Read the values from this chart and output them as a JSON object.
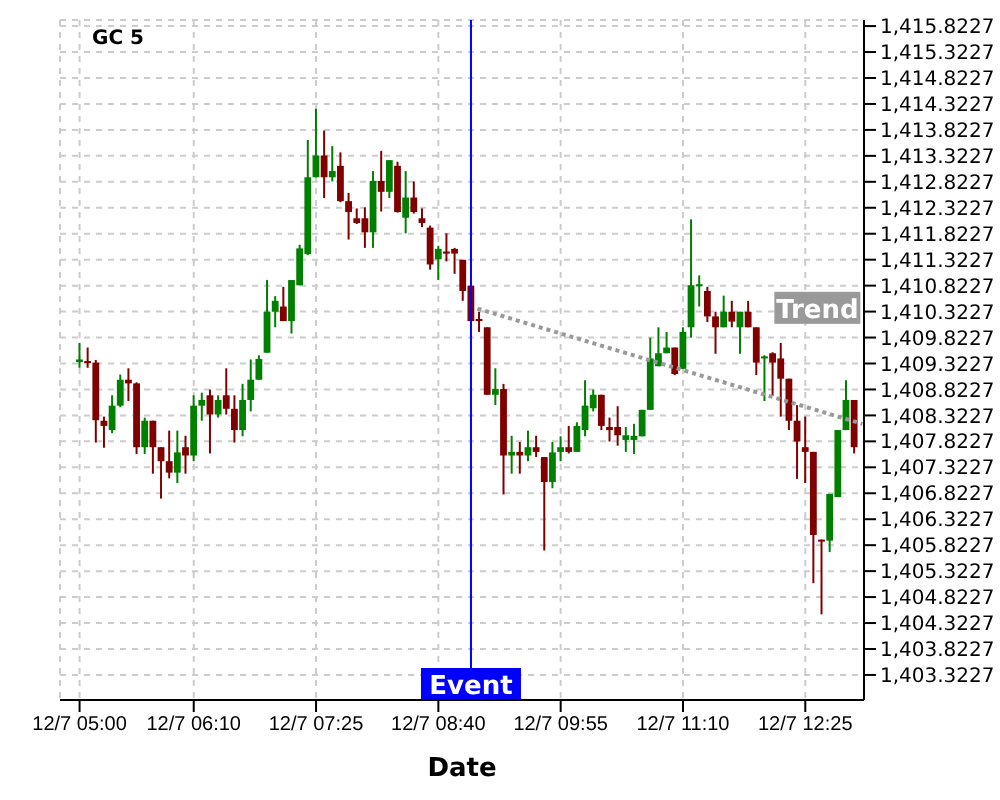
{
  "chart_data": {
    "type": "candlestick",
    "title": "GC 5",
    "xlabel": "Date",
    "x": [
      "--12-07T05:00",
      "--12-07T05:05",
      "--12-07T05:10",
      "--12-07T05:15",
      "--12-07T05:20",
      "--12-07T05:25",
      "--12-07T05:30",
      "--12-07T05:35",
      "--12-07T05:40",
      "--12-07T05:45",
      "--12-07T05:50",
      "--12-07T05:55",
      "--12-07T06:00",
      "--12-07T06:05",
      "--12-07T06:10",
      "--12-07T06:15",
      "--12-07T06:20",
      "--12-07T06:25",
      "--12-07T06:30",
      "--12-07T06:35",
      "--12-07T06:40",
      "--12-07T06:45",
      "--12-07T06:50",
      "--12-07T06:55",
      "--12-07T07:00",
      "--12-07T07:05",
      "--12-07T07:10",
      "--12-07T07:15",
      "--12-07T07:20",
      "--12-07T07:25",
      "--12-07T07:30",
      "--12-07T07:35",
      "--12-07T07:40",
      "--12-07T07:45",
      "--12-07T07:50",
      "--12-07T07:55",
      "--12-07T08:00",
      "--12-07T08:05",
      "--12-07T08:10",
      "--12-07T08:15",
      "--12-07T08:20",
      "--12-07T08:25",
      "--12-07T08:30",
      "--12-07T08:35",
      "--12-07T08:40",
      "--12-07T08:45",
      "--12-07T08:50",
      "--12-07T08:55",
      "--12-07T09:00",
      "--12-07T09:05",
      "--12-07T09:10",
      "--12-07T09:15",
      "--12-07T09:20",
      "--12-07T09:25",
      "--12-07T09:30",
      "--12-07T09:35",
      "--12-07T09:40",
      "--12-07T09:45",
      "--12-07T09:50",
      "--12-07T09:55",
      "--12-07T10:00",
      "--12-07T10:05",
      "--12-07T10:10",
      "--12-07T10:15",
      "--12-07T10:20",
      "--12-07T10:25",
      "--12-07T10:30",
      "--12-07T10:35",
      "--12-07T10:40",
      "--12-07T10:45",
      "--12-07T10:50",
      "--12-07T10:55",
      "--12-07T11:00",
      "--12-07T11:05",
      "--12-07T11:10",
      "--12-07T11:15",
      "--12-07T11:20",
      "--12-07T11:25",
      "--12-07T11:30",
      "--12-07T11:35",
      "--12-07T11:40",
      "--12-07T11:45",
      "--12-07T11:50",
      "--12-07T11:55",
      "--12-07T12:00",
      "--12-07T12:05",
      "--12-07T12:10",
      "--12-07T12:15",
      "--12-07T12:20",
      "--12-07T12:25",
      "--12-07T12:30",
      "--12-07T12:35",
      "--12-07T12:40",
      "--12-07T12:45",
      "--12-07T12:50",
      "--12-07T12:55"
    ],
    "ohlc": [
      [
        1409.35,
        1409.72,
        1409.24,
        1409.4
      ],
      [
        1409.37,
        1409.63,
        1409.24,
        1409.34
      ],
      [
        1409.34,
        1409.39,
        1407.8,
        1408.23
      ],
      [
        1408.22,
        1408.3,
        1407.7,
        1408.12
      ],
      [
        1408.04,
        1408.71,
        1407.98,
        1408.51
      ],
      [
        1408.51,
        1409.11,
        1408.48,
        1409.01
      ],
      [
        1409.01,
        1409.23,
        1408.6,
        1408.94
      ],
      [
        1408.94,
        1408.96,
        1407.58,
        1407.71
      ],
      [
        1407.71,
        1408.28,
        1407.58,
        1408.22
      ],
      [
        1408.22,
        1408.22,
        1407.2,
        1407.71
      ],
      [
        1407.71,
        1407.71,
        1406.72,
        1407.44
      ],
      [
        1407.44,
        1408.03,
        1407.11,
        1407.22
      ],
      [
        1407.22,
        1408.03,
        1407.02,
        1407.61
      ],
      [
        1407.71,
        1407.93,
        1407.2,
        1407.55
      ],
      [
        1407.55,
        1408.71,
        1407.44,
        1408.51
      ],
      [
        1408.51,
        1408.76,
        1408.22,
        1408.62
      ],
      [
        1408.71,
        1408.82,
        1407.59,
        1408.34
      ],
      [
        1408.34,
        1408.71,
        1408.28,
        1408.62
      ],
      [
        1408.71,
        1409.23,
        1408.34,
        1408.45
      ],
      [
        1408.45,
        1408.71,
        1407.8,
        1408.04
      ],
      [
        1408.04,
        1408.93,
        1407.92,
        1408.62
      ],
      [
        1408.62,
        1409.4,
        1408.4,
        1409.01
      ],
      [
        1409.01,
        1409.48,
        1409.01,
        1409.41
      ],
      [
        1409.53,
        1410.93,
        1409.53,
        1410.32
      ],
      [
        1410.32,
        1410.62,
        1410.02,
        1410.53
      ],
      [
        1410.42,
        1410.8,
        1410.14,
        1410.14
      ],
      [
        1410.14,
        1410.93,
        1409.9,
        1410.93
      ],
      [
        1410.83,
        1411.61,
        1410.83,
        1411.54
      ],
      [
        1411.43,
        1413.63,
        1411.41,
        1412.91
      ],
      [
        1412.91,
        1414.23,
        1412.91,
        1413.33
      ],
      [
        1413.33,
        1413.81,
        1412.51,
        1412.91
      ],
      [
        1412.91,
        1413.51,
        1412.83,
        1413.03
      ],
      [
        1413.13,
        1413.39,
        1412.43,
        1412.45
      ],
      [
        1412.45,
        1412.61,
        1411.71,
        1412.24
      ],
      [
        1412.12,
        1412.31,
        1412.01,
        1412.03
      ],
      [
        1412.12,
        1412.33,
        1411.55,
        1411.85
      ],
      [
        1411.85,
        1413.03,
        1411.55,
        1412.84
      ],
      [
        1412.84,
        1413.42,
        1412.25,
        1412.63
      ],
      [
        1412.63,
        1413.24,
        1412.51,
        1413.24
      ],
      [
        1413.13,
        1413.21,
        1412.23,
        1412.24
      ],
      [
        1412.13,
        1413.03,
        1411.83,
        1412.52
      ],
      [
        1412.52,
        1412.83,
        1412.21,
        1412.24
      ],
      [
        1412.12,
        1412.31,
        1411.95,
        1412.03
      ],
      [
        1411.94,
        1411.98,
        1411.13,
        1411.23
      ],
      [
        1411.33,
        1411.59,
        1410.93,
        1411.53
      ],
      [
        1411.48,
        1411.83,
        1411.29,
        1411.44
      ],
      [
        1411.53,
        1411.55,
        1411.05,
        1411.44
      ],
      [
        1411.32,
        1411.32,
        1410.53,
        1410.72
      ],
      [
        1410.82,
        1410.82,
        1410.14,
        1410.14
      ],
      [
        1410.18,
        1410.32,
        1409.93,
        1410.14
      ],
      [
        1410.02,
        1410.02,
        1408.72,
        1408.72
      ],
      [
        1408.72,
        1409.23,
        1408.52,
        1408.83
      ],
      [
        1408.83,
        1408.93,
        1406.8,
        1407.55
      ],
      [
        1407.55,
        1407.93,
        1407.2,
        1407.62
      ],
      [
        1407.62,
        1407.81,
        1407.2,
        1407.55
      ],
      [
        1407.55,
        1408.03,
        1407.44,
        1407.71
      ],
      [
        1407.71,
        1407.93,
        1407.52,
        1407.62
      ],
      [
        1407.52,
        1407.52,
        1405.72,
        1407.04
      ],
      [
        1407.04,
        1407.81,
        1406.92,
        1407.61
      ],
      [
        1407.62,
        1407.92,
        1407.44,
        1407.71
      ],
      [
        1407.71,
        1408.12,
        1407.59,
        1407.62
      ],
      [
        1407.62,
        1408.19,
        1407.62,
        1408.12
      ],
      [
        1408.04,
        1409.0,
        1407.92,
        1408.51
      ],
      [
        1408.46,
        1408.82,
        1408.4,
        1408.72
      ],
      [
        1408.72,
        1408.72,
        1408.04,
        1408.12
      ],
      [
        1408.1,
        1408.28,
        1407.82,
        1408.04
      ],
      [
        1408.1,
        1408.5,
        1407.74,
        1407.94
      ],
      [
        1407.85,
        1408.1,
        1407.62,
        1407.94
      ],
      [
        1407.85,
        1408.16,
        1407.58,
        1407.93
      ],
      [
        1407.92,
        1408.43,
        1407.92,
        1408.43
      ],
      [
        1408.43,
        1409.82,
        1408.43,
        1409.42
      ],
      [
        1409.27,
        1410.02,
        1409.27,
        1409.52
      ],
      [
        1409.52,
        1409.93,
        1409.52,
        1409.63
      ],
      [
        1409.63,
        1409.63,
        1409.1,
        1409.12
      ],
      [
        1409.22,
        1410.02,
        1409.22,
        1409.93
      ],
      [
        1410.02,
        1412.1,
        1409.82,
        1410.83
      ],
      [
        1410.83,
        1411.02,
        1410.42,
        1410.85
      ],
      [
        1410.72,
        1410.8,
        1410.12,
        1410.23
      ],
      [
        1410.23,
        1410.32,
        1409.51,
        1410.02
      ],
      [
        1410.02,
        1410.63,
        1410.02,
        1410.32
      ],
      [
        1410.32,
        1410.53,
        1410.02,
        1410.13
      ],
      [
        1410.02,
        1410.32,
        1409.51,
        1410.32
      ],
      [
        1410.32,
        1410.53,
        1410.02,
        1410.02
      ],
      [
        1410.02,
        1410.02,
        1409.1,
        1409.34
      ],
      [
        1409.42,
        1409.48,
        1408.6,
        1409.46
      ],
      [
        1409.52,
        1409.54,
        1408.7,
        1409.34
      ],
      [
        1409.42,
        1409.72,
        1408.3,
        1409.03
      ],
      [
        1409.03,
        1409.03,
        1408.04,
        1408.22
      ],
      [
        1408.22,
        1408.52,
        1407.1,
        1407.82
      ],
      [
        1407.71,
        1408.3,
        1407.02,
        1407.62
      ],
      [
        1407.62,
        1407.62,
        1405.09,
        1406.02
      ],
      [
        1405.93,
        1405.93,
        1404.49,
        1405.91
      ],
      [
        1405.91,
        1406.81,
        1405.69,
        1406.81
      ],
      [
        1406.75,
        1408.04,
        1406.75,
        1408.04
      ],
      [
        1408.04,
        1409.0,
        1408.04,
        1408.62
      ],
      [
        1408.62,
        1408.62,
        1407.59,
        1407.71
      ]
    ],
    "colors": [
      "#008000",
      "#800000",
      "#800000",
      "#800000",
      "#008000",
      "#008000",
      "#800000",
      "#800000",
      "#008000",
      "#800000",
      "#800000",
      "#800000",
      "#008000",
      "#800000",
      "#008000",
      "#008000",
      "#800000",
      "#008000",
      "#800000",
      "#800000",
      "#008000",
      "#008000",
      "#008000",
      "#008000",
      "#008000",
      "#800000",
      "#008000",
      "#008000",
      "#008000",
      "#008000",
      "#800000",
      "#008000",
      "#800000",
      "#800000",
      "#800000",
      "#800000",
      "#008000",
      "#800000",
      "#008000",
      "#800000",
      "#008000",
      "#800000",
      "#800000",
      "#800000",
      "#008000",
      "#800000",
      "#800000",
      "#800000",
      "#800000",
      "#800000",
      "#800000",
      "#008000",
      "#800000",
      "#008000",
      "#800000",
      "#008000",
      "#800000",
      "#800000",
      "#008000",
      "#008000",
      "#800000",
      "#008000",
      "#008000",
      "#008000",
      "#800000",
      "#800000",
      "#800000",
      "#008000",
      "#008000",
      "#008000",
      "#008000",
      "#008000",
      "#008000",
      "#800000",
      "#008000",
      "#008000",
      "#008000",
      "#800000",
      "#800000",
      "#008000",
      "#800000",
      "#008000",
      "#800000",
      "#800000",
      "#008000",
      "#800000",
      "#800000",
      "#800000",
      "#800000",
      "#800000",
      "#800000",
      "#800000",
      "#008000",
      "#008000",
      "#008000",
      "#800000"
    ],
    "series": [
      {
        "type": "line",
        "name": "Trend",
        "x": [
          "--12-07T09:04",
          "--12-07T13:00"
        ],
        "values": [
          1410.38,
          1408.16
        ],
        "color": "#999999",
        "line_style": "dotted",
        "marker": "none"
      }
    ],
    "xlim": [
      "--12-07T04:48",
      "--12-07T13:01"
    ],
    "xticks": [
      {
        "value": "--12-07T05:00",
        "label": "12/7 05:00"
      },
      {
        "value": "--12-07T06:10",
        "label": "12/7 06:10"
      },
      {
        "value": "--12-07T07:25",
        "label": "12/7 07:25"
      },
      {
        "value": "--12-07T08:40",
        "label": "12/7 08:40"
      },
      {
        "value": "--12-07T09:55",
        "label": "12/7 09:55"
      },
      {
        "value": "--12-07T11:10",
        "label": "12/7 11:10"
      },
      {
        "value": "--12-07T12:25",
        "label": "12/7 12:25"
      }
    ],
    "ylim": [
      1402.84,
      1415.94
    ],
    "yticks": [
      {
        "value": 1403.3227,
        "label": "1,403.3227"
      },
      {
        "value": 1403.8227,
        "label": "1,403.8227"
      },
      {
        "value": 1404.3227,
        "label": "1,404.3227"
      },
      {
        "value": 1404.8227,
        "label": "1,404.8227"
      },
      {
        "value": 1405.3227,
        "label": "1,405.3227"
      },
      {
        "value": 1405.8227,
        "label": "1,405.8227"
      },
      {
        "value": 1406.3227,
        "label": "1,406.3227"
      },
      {
        "value": 1406.8227,
        "label": "1,406.8227"
      },
      {
        "value": 1407.3227,
        "label": "1,407.3227"
      },
      {
        "value": 1407.8227,
        "label": "1,407.8227"
      },
      {
        "value": 1408.3227,
        "label": "1,408.3227"
      },
      {
        "value": 1408.8227,
        "label": "1,408.8227"
      },
      {
        "value": 1409.3227,
        "label": "1,409.3227"
      },
      {
        "value": 1409.8227,
        "label": "1,409.8227"
      },
      {
        "value": 1410.3227,
        "label": "1,410.3227"
      },
      {
        "value": 1410.8227,
        "label": "1,410.8227"
      },
      {
        "value": 1411.3227,
        "label": "1,411.3227"
      },
      {
        "value": 1411.8227,
        "label": "1,411.8227"
      },
      {
        "value": 1412.3227,
        "label": "1,412.3227"
      },
      {
        "value": 1412.8227,
        "label": "1,412.8227"
      },
      {
        "value": 1413.3227,
        "label": "1,413.3227"
      },
      {
        "value": 1413.8227,
        "label": "1,413.8227"
      },
      {
        "value": 1414.3227,
        "label": "1,414.3227"
      },
      {
        "value": 1414.8227,
        "label": "1,414.8227"
      },
      {
        "value": 1415.3227,
        "label": "1,415.3227"
      },
      {
        "value": 1415.8227,
        "label": "1,415.8227"
      }
    ],
    "ref_lines": [
      {
        "axis": "x",
        "value": "--12-07T09:00",
        "label": "Event",
        "color": "#0000ff"
      }
    ],
    "grid": true
  }
}
